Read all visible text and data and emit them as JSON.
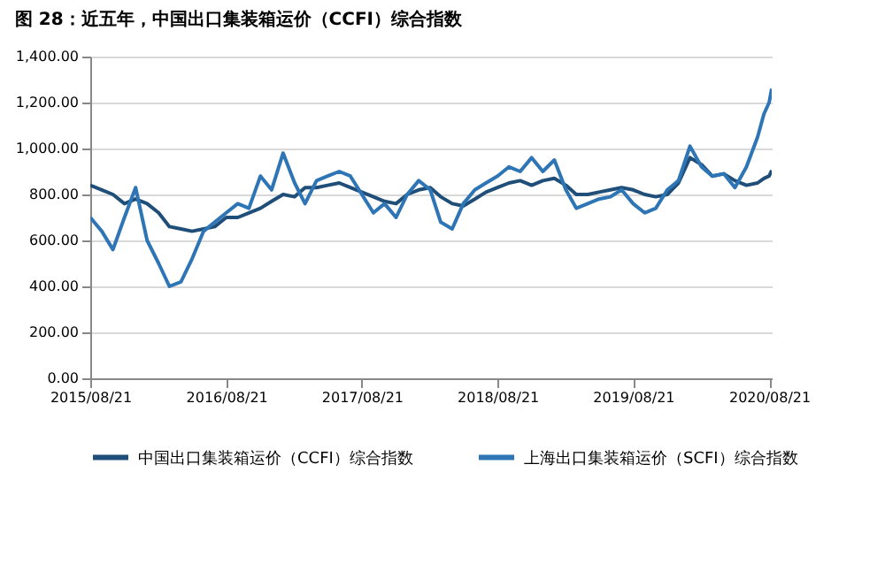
{
  "chart_data": {
    "type": "line",
    "title": "图 28：近五年，中国出口集装箱运价（CCFI）综合指数",
    "x": [
      "2015-08-21",
      "2015-09-21",
      "2015-10-21",
      "2015-11-21",
      "2015-12-21",
      "2016-01-21",
      "2016-02-21",
      "2016-03-21",
      "2016-04-21",
      "2016-05-21",
      "2016-06-21",
      "2016-07-21",
      "2016-08-21",
      "2016-09-21",
      "2016-10-21",
      "2016-11-21",
      "2016-12-21",
      "2017-01-21",
      "2017-02-21",
      "2017-03-21",
      "2017-04-21",
      "2017-05-21",
      "2017-06-21",
      "2017-07-21",
      "2017-08-21",
      "2017-09-21",
      "2017-10-21",
      "2017-11-21",
      "2017-12-21",
      "2018-01-21",
      "2018-02-21",
      "2018-03-21",
      "2018-04-21",
      "2018-05-21",
      "2018-06-21",
      "2018-07-21",
      "2018-08-21",
      "2018-09-21",
      "2018-10-21",
      "2018-11-21",
      "2018-12-21",
      "2019-01-21",
      "2019-02-21",
      "2019-03-21",
      "2019-04-21",
      "2019-05-21",
      "2019-06-21",
      "2019-07-21",
      "2019-08-21",
      "2019-09-21",
      "2019-10-21",
      "2019-11-21",
      "2019-12-21",
      "2020-01-21",
      "2020-02-21",
      "2020-03-21",
      "2020-04-21",
      "2020-05-21",
      "2020-06-21",
      "2020-07-21",
      "2020-08-07",
      "2020-08-21",
      "2020-08-28"
    ],
    "series": [
      {
        "name": "中国出口集装箱运价（CCFI）综合指数",
        "color": "#1f4e79",
        "values": [
          840,
          820,
          800,
          760,
          780,
          760,
          720,
          660,
          650,
          640,
          650,
          660,
          700,
          700,
          720,
          740,
          770,
          800,
          790,
          830,
          830,
          840,
          850,
          830,
          810,
          790,
          770,
          760,
          800,
          820,
          830,
          790,
          760,
          750,
          780,
          810,
          830,
          850,
          860,
          840,
          860,
          870,
          840,
          800,
          800,
          810,
          820,
          830,
          820,
          800,
          790,
          800,
          850,
          960,
          930,
          880,
          890,
          860,
          840,
          850,
          870,
          880,
          905
        ]
      },
      {
        "name": "上海出口集装箱运价（SCFI）综合指数",
        "color": "#2e75b6",
        "values": [
          700,
          640,
          560,
          700,
          830,
          600,
          500,
          400,
          420,
          520,
          640,
          680,
          720,
          760,
          740,
          880,
          820,
          980,
          850,
          760,
          860,
          880,
          900,
          880,
          800,
          720,
          760,
          700,
          800,
          860,
          820,
          680,
          650,
          760,
          820,
          850,
          880,
          920,
          900,
          960,
          900,
          950,
          820,
          740,
          760,
          780,
          790,
          820,
          760,
          720,
          740,
          820,
          860,
          1010,
          920,
          880,
          890,
          830,
          920,
          1050,
          1150,
          1200,
          1260
        ]
      }
    ],
    "xlim": [
      "2015-08-21",
      "2020-08-28"
    ],
    "xticks": [
      {
        "value": "2015-08-21",
        "label": "2015/08/21"
      },
      {
        "value": "2016-08-21",
        "label": "2016/08/21"
      },
      {
        "value": "2017-08-21",
        "label": "2017/08/21"
      },
      {
        "value": "2018-08-21",
        "label": "2018/08/21"
      },
      {
        "value": "2019-08-21",
        "label": "2019/08/21"
      },
      {
        "value": "2020-08-21",
        "label": "2020/08/21"
      }
    ],
    "ylim": [
      0,
      1400
    ],
    "yticks": [
      {
        "value": 0,
        "label": "0.00"
      },
      {
        "value": 200,
        "label": "200.00"
      },
      {
        "value": 400,
        "label": "400.00"
      },
      {
        "value": 600,
        "label": "600.00"
      },
      {
        "value": 800,
        "label": "800.00"
      },
      {
        "value": 1000,
        "label": "1,000.00"
      },
      {
        "value": 1200,
        "label": "1,200.00"
      },
      {
        "value": 1400,
        "label": "1,400.00"
      }
    ],
    "grid": "y",
    "legend": "bottom",
    "line_style": "solid",
    "marker": "none"
  }
}
